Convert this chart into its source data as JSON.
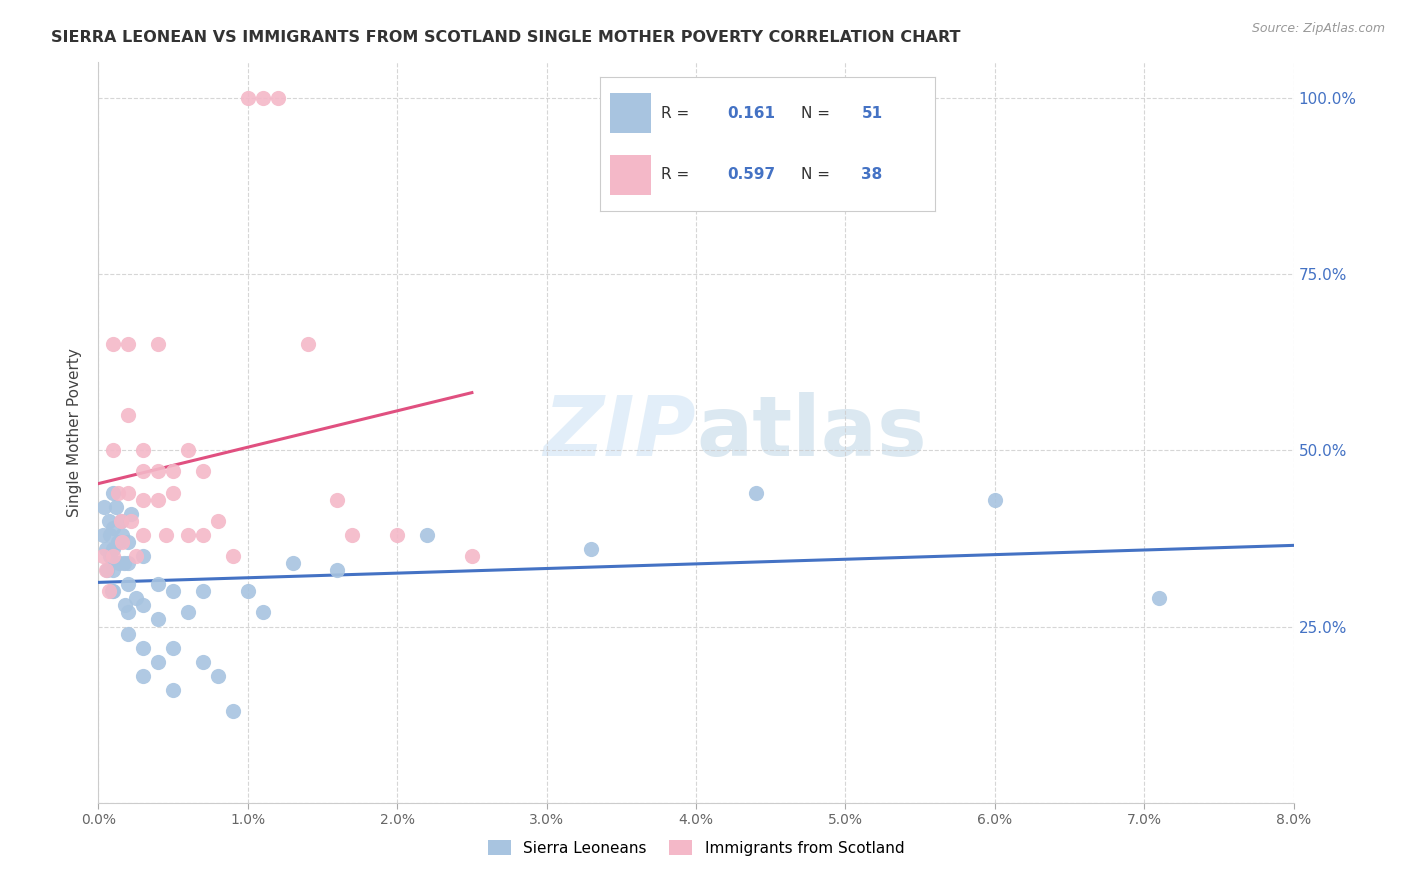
{
  "title": "SIERRA LEONEAN VS IMMIGRANTS FROM SCOTLAND SINGLE MOTHER POVERTY CORRELATION CHART",
  "source": "Source: ZipAtlas.com",
  "ylabel": "Single Mother Poverty",
  "yticks": [
    0.0,
    0.25,
    0.5,
    0.75,
    1.0
  ],
  "ytick_labels": [
    "",
    "25.0%",
    "50.0%",
    "75.0%",
    "100.0%"
  ],
  "xlim": [
    0.0,
    0.08
  ],
  "ylim": [
    0.0,
    1.05
  ],
  "r_sierra": 0.161,
  "n_sierra": 51,
  "r_scotland": 0.597,
  "n_scotland": 38,
  "sierra_color": "#a8c4e0",
  "scotland_color": "#f4b8c8",
  "sierra_line_color": "#4472c4",
  "scotland_line_color": "#e05080",
  "legend_text_color": "#4472c4",
  "watermark_color": "#d0e4f5",
  "legend_label_sierra": "Sierra Leoneans",
  "legend_label_scotland": "Immigrants from Scotland",
  "sierra_x": [
    0.0003,
    0.0004,
    0.0005,
    0.0006,
    0.0007,
    0.0008,
    0.0008,
    0.0009,
    0.001,
    0.001,
    0.001,
    0.001,
    0.001,
    0.0012,
    0.0013,
    0.0014,
    0.0015,
    0.0016,
    0.0017,
    0.0018,
    0.002,
    0.002,
    0.002,
    0.002,
    0.002,
    0.0022,
    0.0025,
    0.003,
    0.003,
    0.003,
    0.003,
    0.004,
    0.004,
    0.004,
    0.005,
    0.005,
    0.005,
    0.006,
    0.007,
    0.007,
    0.008,
    0.009,
    0.01,
    0.011,
    0.013,
    0.016,
    0.022,
    0.033,
    0.044,
    0.06,
    0.071
  ],
  "sierra_y": [
    0.38,
    0.42,
    0.36,
    0.33,
    0.4,
    0.35,
    0.38,
    0.3,
    0.44,
    0.39,
    0.36,
    0.33,
    0.3,
    0.42,
    0.37,
    0.34,
    0.4,
    0.38,
    0.34,
    0.28,
    0.37,
    0.34,
    0.31,
    0.27,
    0.24,
    0.41,
    0.29,
    0.35,
    0.28,
    0.22,
    0.18,
    0.31,
    0.26,
    0.2,
    0.3,
    0.22,
    0.16,
    0.27,
    0.3,
    0.2,
    0.18,
    0.13,
    0.3,
    0.27,
    0.34,
    0.33,
    0.38,
    0.36,
    0.44,
    0.43,
    0.29
  ],
  "scotland_x": [
    0.0003,
    0.0005,
    0.0007,
    0.001,
    0.001,
    0.001,
    0.0013,
    0.0015,
    0.0016,
    0.002,
    0.002,
    0.002,
    0.0022,
    0.0025,
    0.003,
    0.003,
    0.003,
    0.003,
    0.004,
    0.004,
    0.004,
    0.0045,
    0.005,
    0.005,
    0.006,
    0.006,
    0.007,
    0.007,
    0.008,
    0.009,
    0.01,
    0.011,
    0.012,
    0.014,
    0.016,
    0.017,
    0.02,
    0.025
  ],
  "scotland_y": [
    0.35,
    0.33,
    0.3,
    0.65,
    0.5,
    0.35,
    0.44,
    0.4,
    0.37,
    0.65,
    0.55,
    0.44,
    0.4,
    0.35,
    0.5,
    0.47,
    0.43,
    0.38,
    0.65,
    0.47,
    0.43,
    0.38,
    0.47,
    0.44,
    0.5,
    0.38,
    0.47,
    0.38,
    0.4,
    0.35,
    1.0,
    1.0,
    1.0,
    0.65,
    0.43,
    0.38,
    0.38,
    0.35
  ],
  "scotland_line_x_end": 0.025
}
